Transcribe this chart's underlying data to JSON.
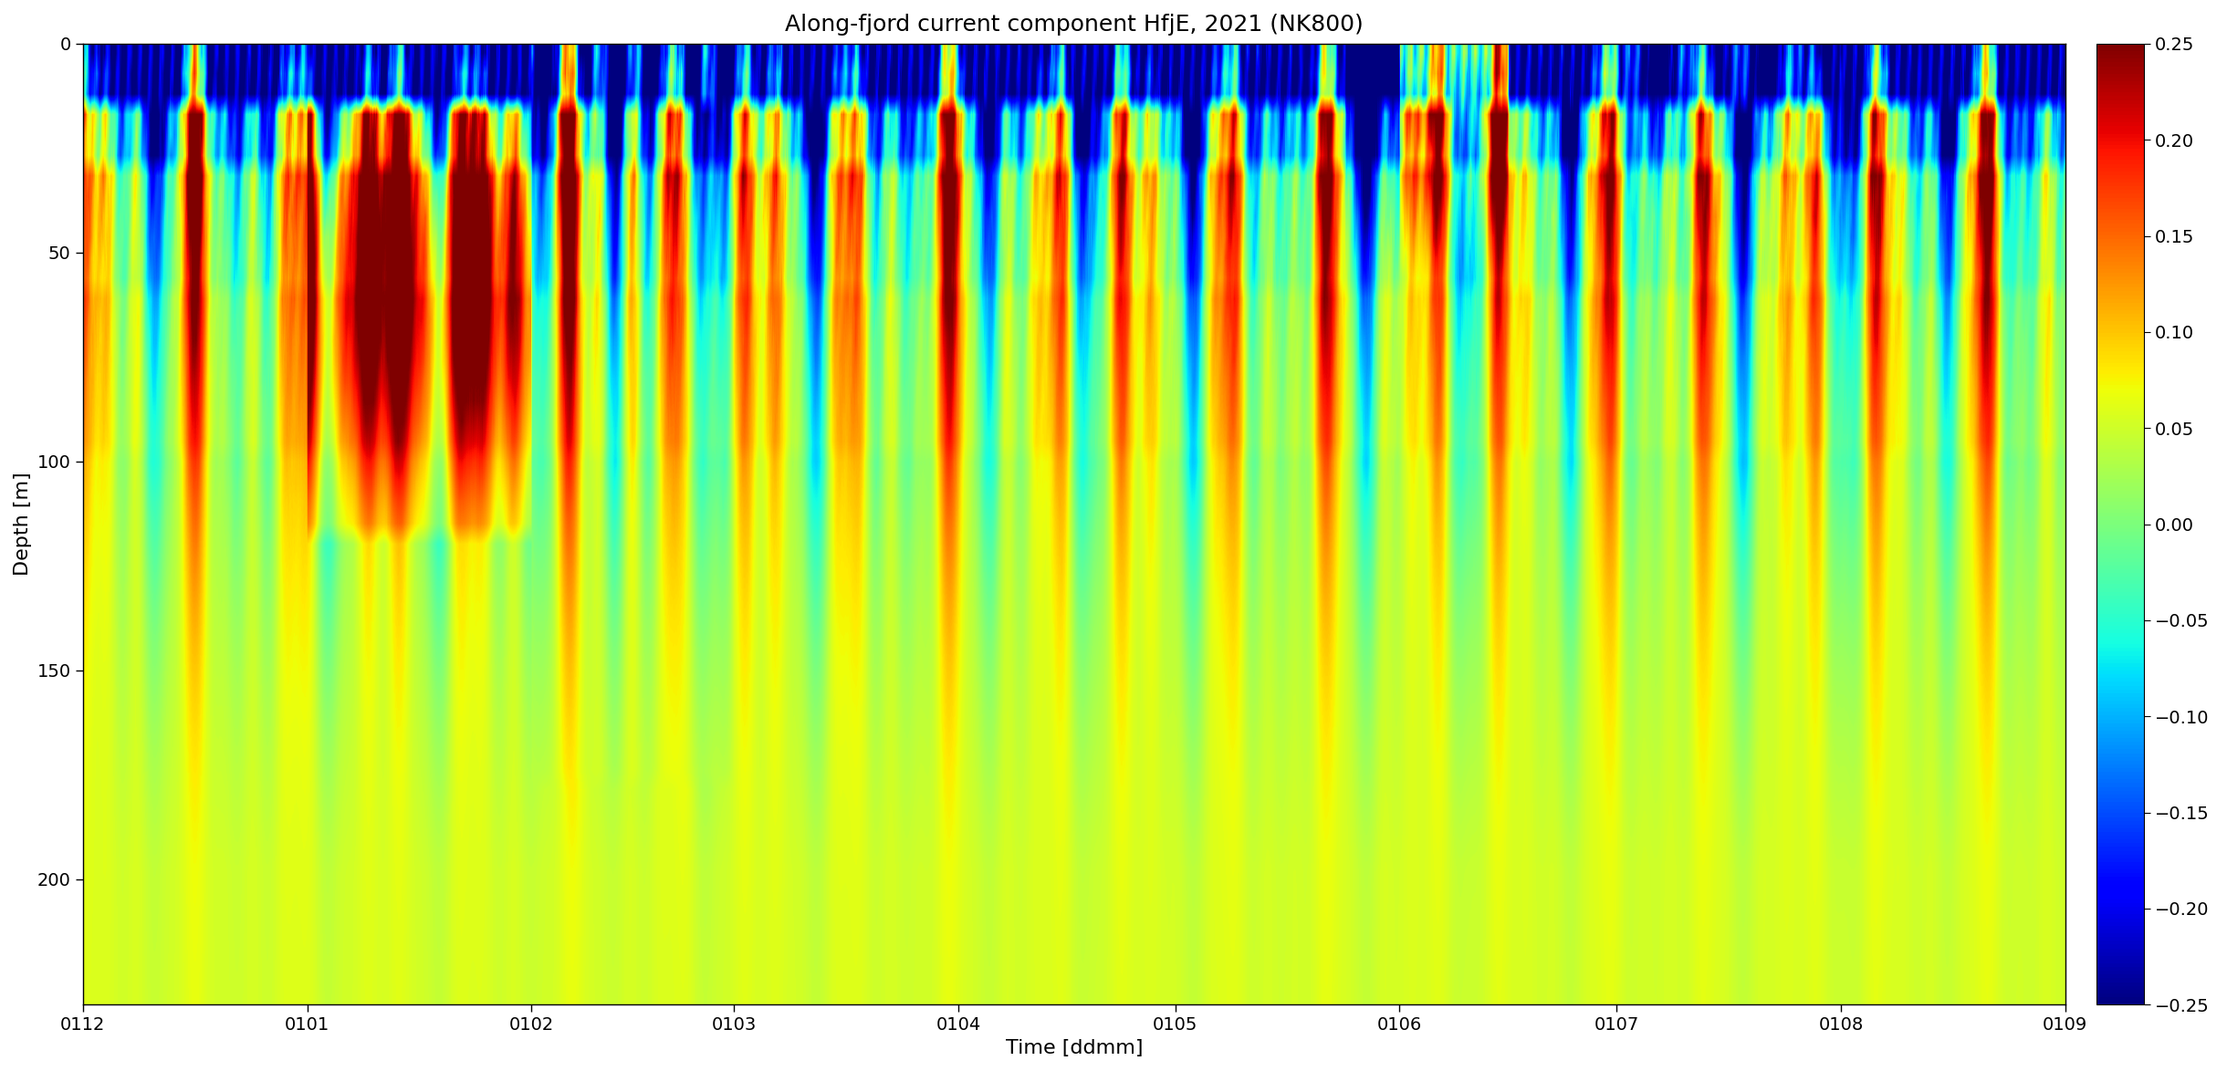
{
  "title": "Along-fjord current component HfjE, 2021 (NK800)",
  "xlabel": "Time [ddmm]",
  "ylabel": "Depth [m]",
  "vmin": -0.25,
  "vmax": 0.25,
  "depth_min": 0,
  "depth_max": 230,
  "colorbar_ticks": [
    0.25,
    0.2,
    0.15,
    0.1,
    0.05,
    0,
    -0.05,
    -0.1,
    -0.15,
    -0.2,
    -0.25
  ],
  "xtick_labels": [
    "0112",
    "0101",
    "0102",
    "0103",
    "0104",
    "0105",
    "0106",
    "0107",
    "0108",
    "0109"
  ],
  "ytick_positions": [
    0,
    50,
    100,
    150,
    200
  ],
  "background_color": "#ffffff",
  "title_fontsize": 18,
  "axis_fontsize": 16,
  "tick_fontsize": 14,
  "colorbar_fontsize": 14,
  "figsize": [
    24.4,
    11.74
  ],
  "dpi": 100,
  "tick_days": [
    0,
    31,
    62,
    90,
    121,
    151,
    182,
    212,
    243,
    274
  ],
  "total_days": 274
}
